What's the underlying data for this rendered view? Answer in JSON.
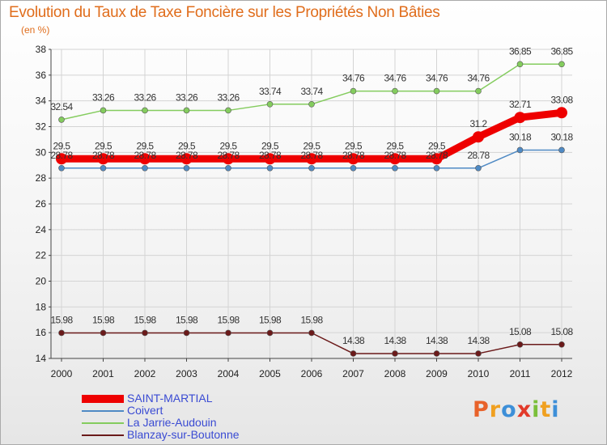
{
  "chart_data": {
    "type": "line",
    "title": "Evolution du Taux de Taxe Foncière sur les Propriétés Non Bâties",
    "subtitle": "(en %)",
    "x": [
      "2000",
      "2001",
      "2002",
      "2003",
      "2004",
      "2005",
      "2006",
      "2007",
      "2008",
      "2009",
      "2010",
      "2011",
      "2012"
    ],
    "ylim": [
      14,
      38
    ],
    "yticks": [
      14,
      16,
      18,
      20,
      22,
      24,
      26,
      28,
      30,
      32,
      34,
      36,
      38
    ],
    "grid": true,
    "legend_position": "bottom-left",
    "series": [
      {
        "name": "SAINT-MARTIAL",
        "color": "#ee0000",
        "values": [
          29.5,
          29.5,
          29.5,
          29.5,
          29.5,
          29.5,
          29.5,
          29.5,
          29.5,
          29.5,
          31.2,
          32.71,
          33.08
        ],
        "labels": [
          "29.5",
          "29.5",
          "29.5",
          "29.5",
          "29.5",
          "29.5",
          "29.5",
          "29.5",
          "29.5",
          "29.5",
          "31.2",
          "32.71",
          "33.08"
        ]
      },
      {
        "name": "Coivert",
        "color": "#4f8ac4",
        "values": [
          28.78,
          28.78,
          28.78,
          28.78,
          28.78,
          28.78,
          28.78,
          28.78,
          28.78,
          28.78,
          28.78,
          30.18,
          30.18
        ],
        "labels": [
          "28.78",
          "28.78",
          "28.78",
          "28.78",
          "28.78",
          "28.78",
          "28.78",
          "28.78",
          "28.78",
          "28.78",
          "28.78",
          "30.18",
          "30.18"
        ]
      },
      {
        "name": "La Jarrie-Audouin",
        "color": "#84cc5e",
        "values": [
          32.54,
          33.26,
          33.26,
          33.26,
          33.26,
          33.74,
          33.74,
          34.76,
          34.76,
          34.76,
          34.76,
          36.85,
          36.85
        ],
        "labels": [
          "32.54",
          "33.26",
          "33.26",
          "33.26",
          "33.26",
          "33.74",
          "33.74",
          "34.76",
          "34.76",
          "34.76",
          "34.76",
          "36.85",
          "36.85"
        ]
      },
      {
        "name": "Blanzay-sur-Boutonne",
        "color": "#6b1a1a",
        "values": [
          15.98,
          15.98,
          15.98,
          15.98,
          15.98,
          15.98,
          15.98,
          14.38,
          14.38,
          14.38,
          14.38,
          15.08,
          15.08
        ],
        "labels": [
          "15.98",
          "15.98",
          "15.98",
          "15.98",
          "15.98",
          "15.98",
          "15.98",
          "14.38",
          "14.38",
          "14.38",
          "14.38",
          "15.08",
          "15.08"
        ]
      }
    ]
  },
  "logo": {
    "letters": [
      "P",
      "r",
      "o",
      "x",
      "i",
      "t",
      "i"
    ],
    "colors": [
      "#e8622a",
      "#f0a020",
      "#3d8fd8",
      "#e23a2a",
      "#7bbf3a",
      "#f0a020",
      "#3d8fd8"
    ]
  }
}
